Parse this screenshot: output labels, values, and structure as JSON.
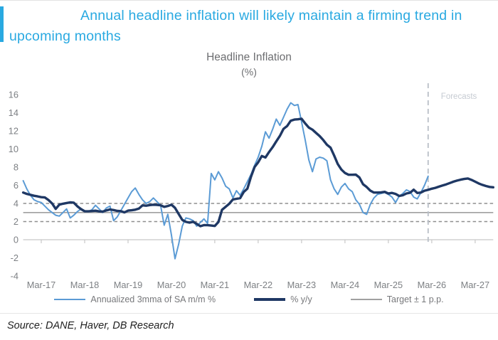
{
  "header": {
    "title": "Annual headline inflation will likely maintain a firming trend in upcoming months",
    "accent_color": "#29a9e1"
  },
  "chart": {
    "title": "Headline Inflation",
    "unit_label": "(%)",
    "legend": [
      {
        "label": "Annualized 3mma of SA m/m %",
        "color": "#5b9bd5",
        "height": 2
      },
      {
        "label": "% y/y",
        "color": "#1f3864",
        "height": 4
      },
      {
        "label": "Target ± 1 p.p.",
        "color": "#a0a0a0",
        "height": 2
      }
    ]
  },
  "chart_data": {
    "type": "line",
    "title": "Headline Inflation (%)",
    "forecast_label": "Forecasts",
    "x_start_month": "Oct-2016",
    "x_tick_labels": [
      "Mar-17",
      "Mar-18",
      "Mar-19",
      "Mar-20",
      "Mar-21",
      "Mar-22",
      "Mar-23",
      "Mar-24",
      "Mar-25",
      "Mar-26",
      "Mar-27"
    ],
    "y_ticks": [
      16,
      14,
      12,
      10,
      8,
      6,
      4,
      2,
      0,
      -2,
      -4
    ],
    "ylim": [
      -4,
      16
    ],
    "grid": "off",
    "legend_position": "bottom",
    "target": {
      "value": 3,
      "band": 1,
      "label": "Target ± 1 p.p.",
      "line_color": "#a0a0a0",
      "band_color": "#8f8f8f"
    },
    "forecast_start_index": 112,
    "series": [
      {
        "name": "Annualized 3mma of SA m/m %",
        "color": "#5b9bd5",
        "width": 2,
        "values": [
          6.5,
          5.6,
          4.9,
          4.4,
          4.2,
          4.1,
          3.7,
          3.3,
          3.0,
          2.7,
          2.6,
          3.0,
          3.4,
          2.4,
          2.7,
          3.1,
          3.4,
          3.2,
          3.1,
          3.3,
          3.8,
          3.4,
          3.0,
          3.5,
          3.7,
          2.1,
          2.5,
          3.2,
          3.9,
          4.6,
          5.3,
          5.7,
          5.0,
          4.4,
          4.0,
          4.2,
          4.6,
          4.2,
          3.8,
          1.6,
          2.8,
          0.5,
          -2.1,
          -0.5,
          1.5,
          2.4,
          2.3,
          2.1,
          1.5,
          1.9,
          2.3,
          1.8,
          7.3,
          6.6,
          7.5,
          6.8,
          5.9,
          5.6,
          4.6,
          5.4,
          4.9,
          5.6,
          6.4,
          7.2,
          8.2,
          9.1,
          10.3,
          11.9,
          11.2,
          12.2,
          13.3,
          12.6,
          13.5,
          14.4,
          15.1,
          14.8,
          14.9,
          13.0,
          11.0,
          8.8,
          7.5,
          8.9,
          9.1,
          9.0,
          8.7,
          6.6,
          5.6,
          5.0,
          5.8,
          6.2,
          5.6,
          5.3,
          4.4,
          3.9,
          3.0,
          2.8,
          3.9,
          4.6,
          5.0,
          5.1,
          5.2,
          5.0,
          4.7,
          4.1,
          4.8,
          5.1,
          5.5,
          5.3,
          4.7,
          4.5,
          5.2,
          6.0,
          7.0
        ]
      },
      {
        "name": "% y/y",
        "color": "#1f3864",
        "width": 3.4,
        "values": [
          5.2,
          5.05,
          4.95,
          4.85,
          4.78,
          4.69,
          4.66,
          4.37,
          3.99,
          3.4,
          3.87,
          3.97,
          4.05,
          4.12,
          4.09,
          3.68,
          3.37,
          3.14,
          3.13,
          3.16,
          3.2,
          3.12,
          3.1,
          3.23,
          3.33,
          3.27,
          3.18,
          3.15,
          3.01,
          3.21,
          3.25,
          3.31,
          3.43,
          3.79,
          3.75,
          3.82,
          3.86,
          3.84,
          3.8,
          3.62,
          3.72,
          3.86,
          3.51,
          2.85,
          2.19,
          1.97,
          1.88,
          1.97,
          1.75,
          1.49,
          1.61,
          1.6,
          1.56,
          1.51,
          1.95,
          3.3,
          3.63,
          3.97,
          4.44,
          4.51,
          4.58,
          5.26,
          5.62,
          6.94,
          8.01,
          8.53,
          9.23,
          9.07,
          9.67,
          10.21,
          10.84,
          11.44,
          12.22,
          12.53,
          13.12,
          13.25,
          13.28,
          13.34,
          12.82,
          12.36,
          12.13,
          11.78,
          11.43,
          10.99,
          10.48,
          10.15,
          9.28,
          8.35,
          7.74,
          7.36,
          7.16,
          7.16,
          7.18,
          6.86,
          6.12,
          5.81,
          5.41,
          5.2,
          5.2,
          5.22,
          5.28,
          5.09,
          5.16,
          5.05,
          4.82,
          4.9,
          5.1,
          5.18,
          5.51,
          5.15,
          5.2,
          5.4,
          5.5,
          5.62,
          5.72,
          5.85,
          5.98,
          6.1,
          6.25,
          6.4,
          6.52,
          6.62,
          6.7,
          6.75,
          6.6,
          6.4,
          6.2,
          6.05,
          5.92,
          5.82,
          5.78
        ]
      }
    ]
  },
  "source": {
    "text": "Source: DANE, Haver, DB Research"
  }
}
